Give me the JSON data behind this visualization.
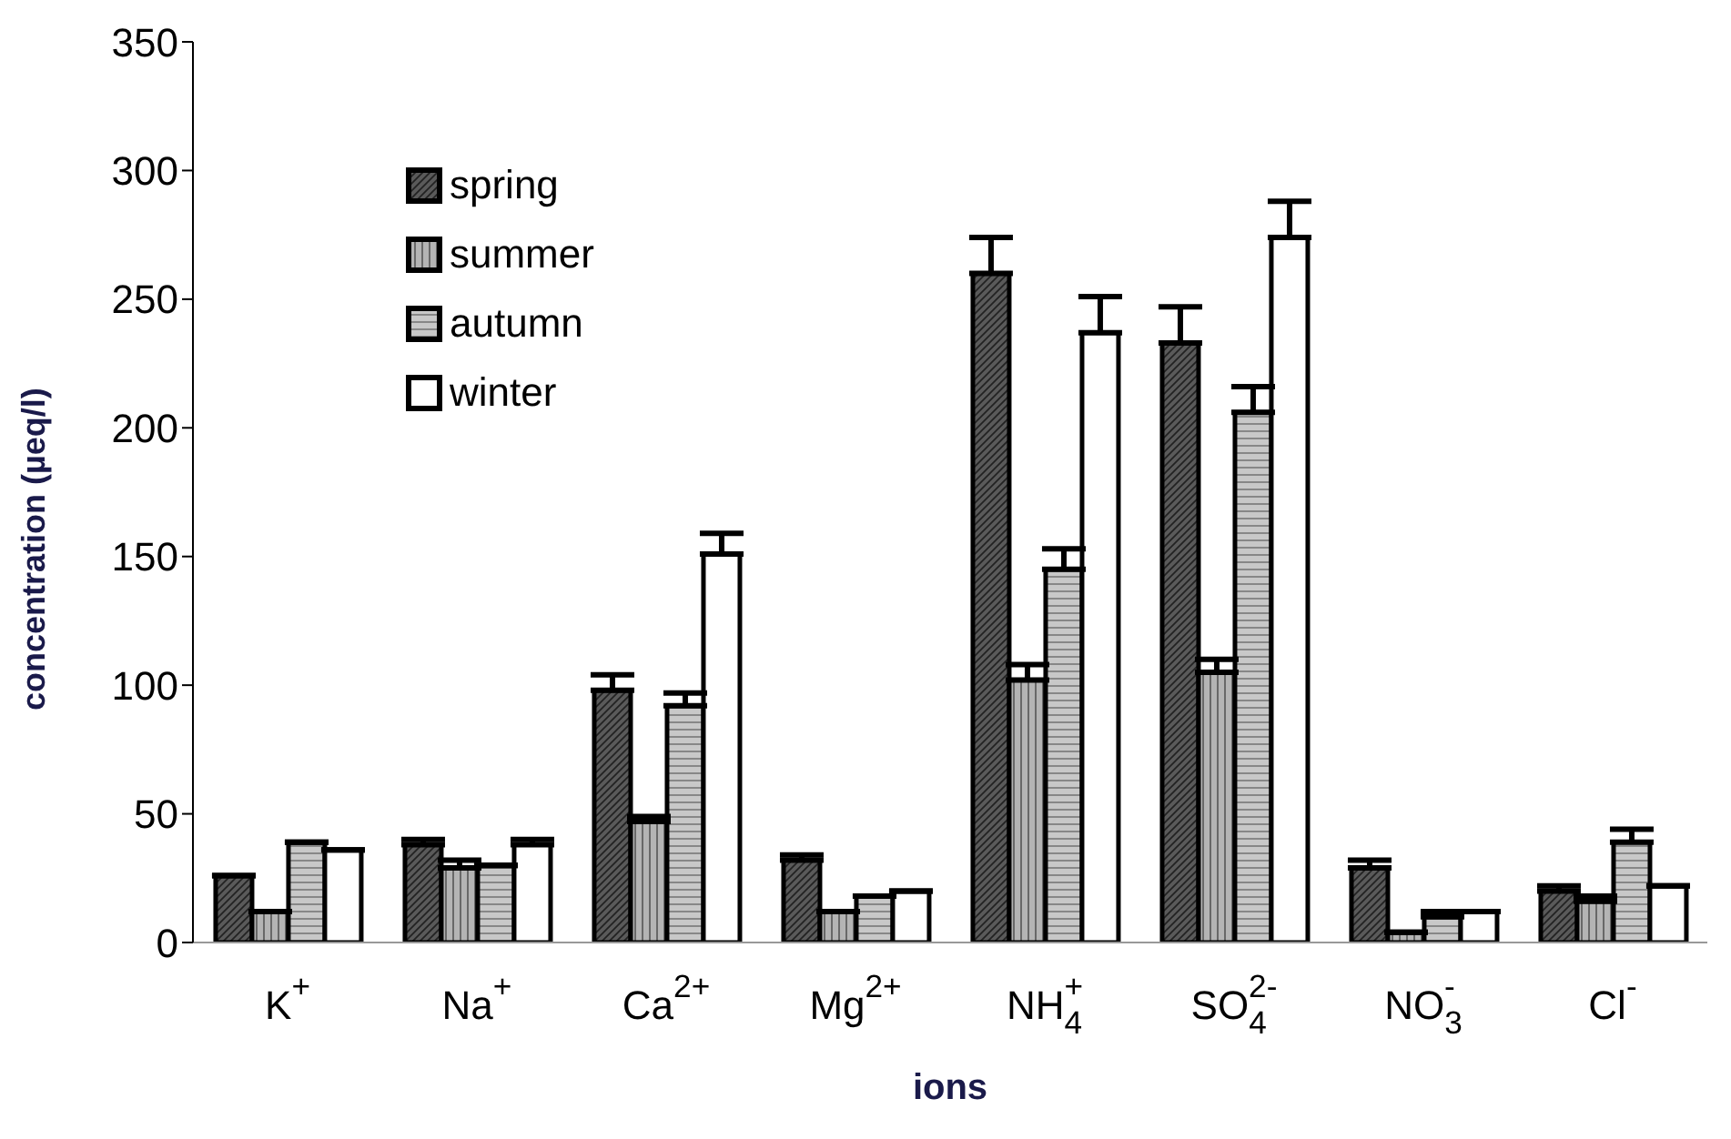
{
  "chart_data": {
    "type": "bar",
    "xlabel": "ions",
    "ylabel": "concentration (µeq/l)",
    "categories": [
      "K$^{+}$",
      "Na$^{+}$",
      "Ca$^{2+}$",
      "Mg$^{2+}$",
      "NH$_{4}$$^{+}$",
      "SO$_{4}$$^{2-}$",
      "NO$_{3}$$^{-}$",
      "Cl$^{-}$"
    ],
    "series": [
      {
        "name": "spring",
        "color": "#5a5a5a",
        "values": [
          26,
          38,
          98,
          32,
          260,
          233,
          29,
          20
        ],
        "errors": [
          null,
          [
            38,
            40
          ],
          [
            98,
            104
          ],
          [
            32,
            34
          ],
          [
            260,
            274
          ],
          [
            233,
            247
          ],
          [
            29,
            32
          ],
          [
            20,
            22
          ]
        ]
      },
      {
        "name": "summer",
        "color": "#b4b4b4",
        "values": [
          12,
          29,
          47,
          12,
          102,
          105,
          4,
          16
        ],
        "errors": [
          null,
          [
            29,
            32
          ],
          [
            47,
            49
          ],
          null,
          [
            102,
            108
          ],
          [
            105,
            110
          ],
          null,
          [
            16,
            18
          ]
        ]
      },
      {
        "name": "autumn",
        "color": "#c8c8c8",
        "values": [
          39,
          30,
          92,
          18,
          145,
          206,
          10,
          39
        ],
        "errors": [
          null,
          null,
          [
            92,
            97
          ],
          null,
          [
            145,
            153
          ],
          [
            206,
            216
          ],
          [
            10,
            12
          ],
          [
            39,
            44
          ]
        ]
      },
      {
        "name": "winter",
        "color": "#ffffff",
        "values": [
          36,
          38,
          151,
          20,
          237,
          274,
          12,
          22
        ],
        "errors": [
          null,
          [
            38,
            40
          ],
          [
            151,
            159
          ],
          null,
          [
            237,
            251
          ],
          [
            274,
            288
          ],
          null,
          null
        ]
      }
    ],
    "ylim": [
      0,
      350
    ],
    "yticks": [
      0,
      50,
      100,
      150,
      200,
      250,
      300,
      350
    ],
    "grid": false,
    "legend": "top left"
  }
}
